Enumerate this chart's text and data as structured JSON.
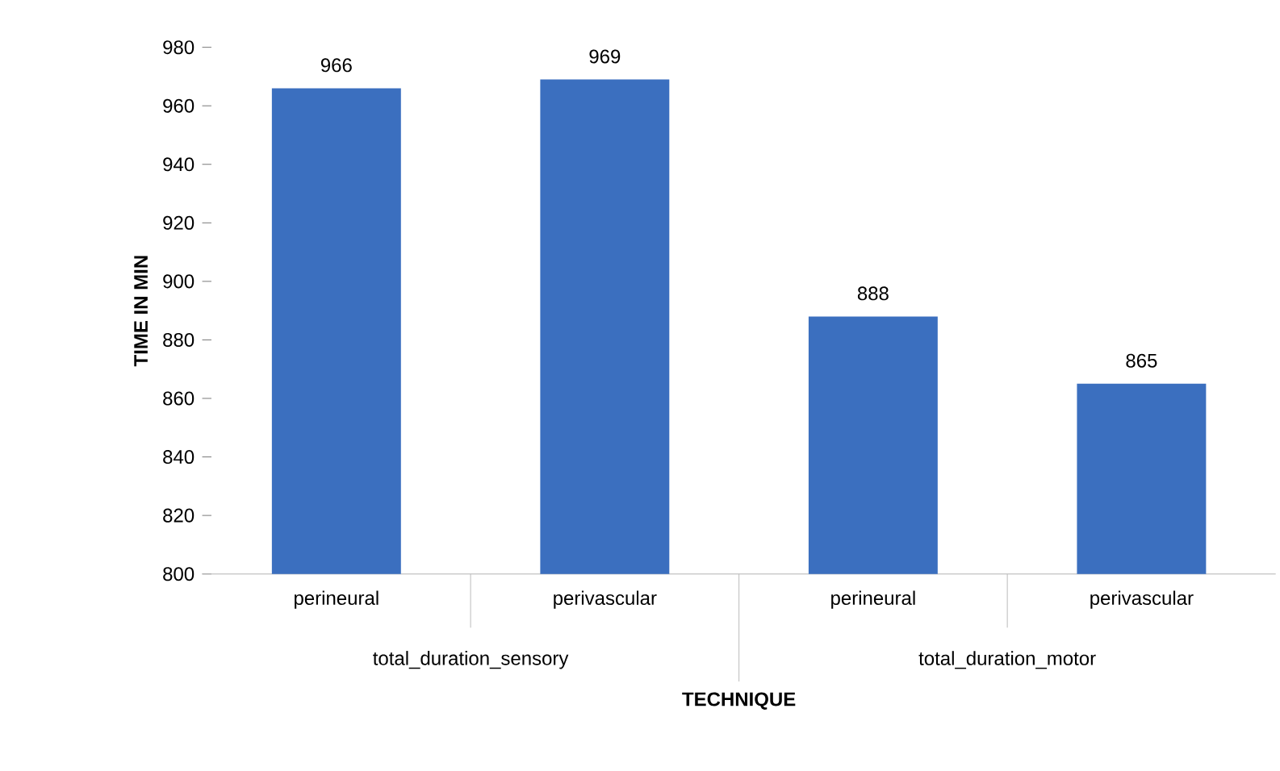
{
  "chart_data": {
    "type": "bar",
    "categories": [
      "perineural",
      "perivascular",
      "perineural",
      "perivascular"
    ],
    "values": [
      966,
      969,
      888,
      865
    ],
    "color": "#3b6fbf",
    "data_labels": true,
    "ylabel": "TIME   IN   MIN",
    "xlabel": "TECHNIQUE",
    "annotations": [
      "total_duration_sensory",
      "total_duration_motor"
    ],
    "ylim": [
      800,
      980
    ],
    "yticks": [
      800,
      820,
      840,
      860,
      880,
      900,
      920,
      940,
      960,
      980
    ]
  }
}
